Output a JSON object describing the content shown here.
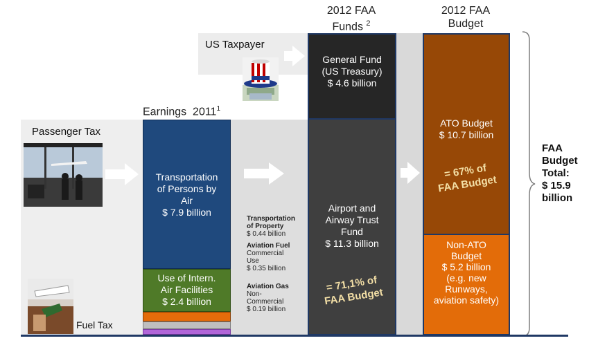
{
  "headers": {
    "funds_line1": "2012 FAA",
    "funds_line2": "Funds",
    "funds_sup": "2",
    "budget_line1": "2012 FAA",
    "budget_line2": "Budget",
    "earnings": "Earnings",
    "earnings_year": "2011",
    "earnings_sup": "1"
  },
  "sources": {
    "us_taxpayer": "US Taxpayer",
    "passenger_tax": "Passenger Tax",
    "fuel_tax": "Fuel Tax"
  },
  "earnings_blocks": {
    "persons_line1": "Transportation",
    "persons_line2": "of Persons by",
    "persons_line3": "Air",
    "persons_value": "$ 7.9 billion",
    "intern_line1": "Use of Intern.",
    "intern_line2": "Air Facilities",
    "intern_value": "$ 2.4 billion"
  },
  "small_items": {
    "property_line1": "Transportation",
    "property_line2": "of Property",
    "property_value": "$ 0.44 billion",
    "fuel_line1": "Aviation Fuel",
    "fuel_line2": "Commercial",
    "fuel_line3": "Use",
    "fuel_value": "$ 0.35 billion",
    "gas_line1": "Aviation Gas",
    "gas_line2": "Non-",
    "gas_line3": "Commercial",
    "gas_value": "$ 0.19 billion"
  },
  "funds": {
    "general_line1": "General Fund",
    "general_line2": "(US Treasury)",
    "general_value": "$ 4.6 billion",
    "trust_line1": "Airport and",
    "trust_line2": "Airway Trust",
    "trust_line3": "Fund",
    "trust_value": "$ 11.3 billion",
    "trust_share_line1": "= 71,1% of",
    "trust_share_line2": "FAA Budget"
  },
  "budget": {
    "ato_line1": "ATO Budget",
    "ato_value": "$ 10.7 billion",
    "ato_share_line1": "= 67% of",
    "ato_share_line2": "FAA Budget",
    "nonato_line1": "Non-ATO",
    "nonato_line2": "Budget",
    "nonato_value": "$ 5.2 billion",
    "nonato_line4": "(e.g. new",
    "nonato_line5": "Runways,",
    "nonato_line6": "aviation safety)"
  },
  "total": {
    "line1": "FAA",
    "line2": "Budget",
    "line3": "Total:",
    "line4": "$ 15.9",
    "line5": "billion"
  },
  "colors": {
    "persons_blue": "#1f497d",
    "intern_green": "#4f7a28",
    "orange_strip": "#e46c0a",
    "purple_strip": "#b266d9",
    "general_fund": "#262626",
    "trust_fund": "#3f3f3f",
    "ato_brown": "#974806",
    "nonato_orange": "#e36c09",
    "band_gray": "#e6e6e6",
    "baseline": "#1f3864"
  }
}
